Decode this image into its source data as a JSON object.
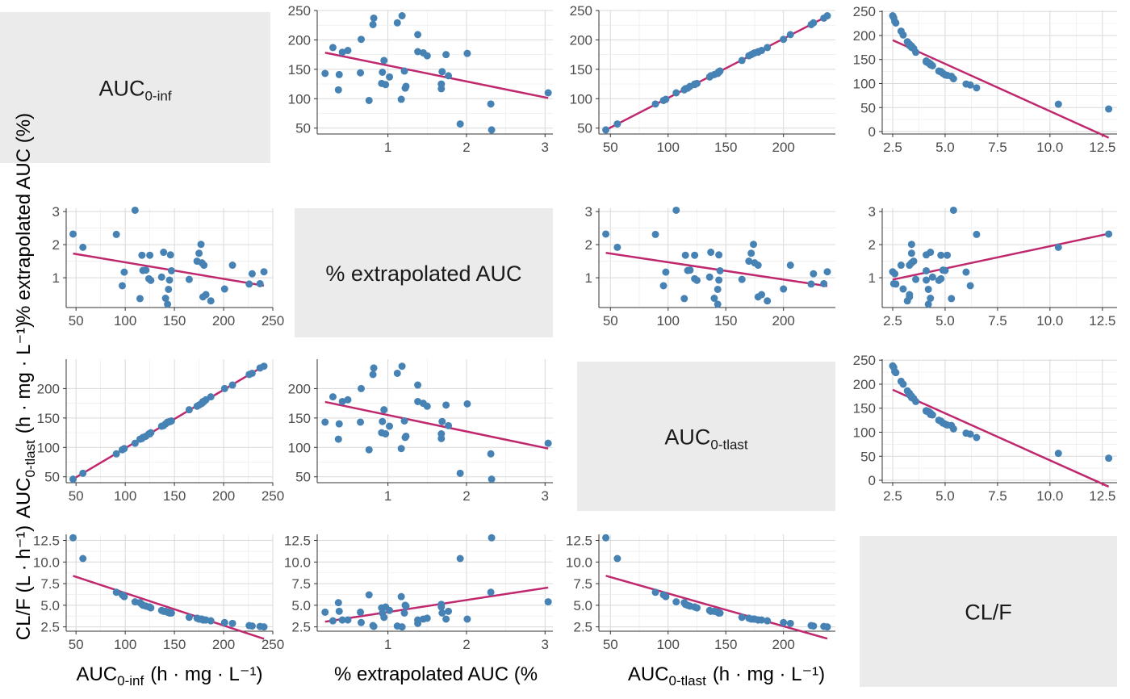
{
  "chart_data": {
    "type": "scatter",
    "title": "",
    "colors": {
      "point": "#4682b4",
      "line": "#c0286e",
      "panel_bg": "#ebebeb",
      "grid": "#d9d9d9"
    },
    "variables": [
      {
        "key": "auc_inf",
        "name": "AUC",
        "sub": "0-inf",
        "unit": "(h · mg · L⁻¹)",
        "range": [
          40,
          250
        ],
        "ticks": [
          50,
          100,
          150,
          200,
          250
        ],
        "tick_labels": [
          "50",
          "100",
          "150",
          "200",
          "250"
        ],
        "diag_label": "AUC0-inf"
      },
      {
        "key": "pct_extrap",
        "name": "% extrapolated AUC",
        "sub": "",
        "unit": "(%)",
        "range": [
          0.1,
          3.1
        ],
        "ticks": [
          1,
          2,
          3
        ],
        "tick_labels": [
          "1",
          "2",
          "3"
        ],
        "diag_label": "% extrapolated AUC"
      },
      {
        "key": "auc_tlast",
        "name": "AUC",
        "sub": "0-tlast",
        "unit": "(h · mg · L⁻¹)",
        "range": [
          40,
          245
        ],
        "ticks": [
          50,
          100,
          150,
          200
        ],
        "tick_labels": [
          "50",
          "100",
          "150",
          "200"
        ],
        "diag_label": "AUC0-tlast"
      },
      {
        "key": "cl_f",
        "name": "CL/F",
        "sub": "",
        "unit": "(L · h⁻¹)",
        "range": [
          2.0,
          13.2
        ],
        "ticks": [
          2.5,
          5.0,
          7.5,
          10.0,
          12.5
        ],
        "tick_labels": [
          "2.5",
          "5.0",
          "7.5",
          "10.0",
          "12.5"
        ],
        "diag_label": "CL/F"
      }
    ],
    "range_tlast_as_y": [
      40,
      250
    ],
    "ticks_tlast_as_y": [
      50,
      100,
      150,
      200
    ],
    "range_clf_as_y": [
      -5,
      252
    ],
    "ticks_clf_as_y": [
      0,
      50,
      100,
      150,
      200,
      250
    ],
    "observations": [
      {
        "auc_inf": 47,
        "pct_extrap": 2.32,
        "auc_tlast": 46,
        "cl_f": 12.8
      },
      {
        "auc_inf": 57,
        "pct_extrap": 1.92,
        "auc_tlast": 56,
        "cl_f": 10.4
      },
      {
        "auc_inf": 91,
        "pct_extrap": 2.31,
        "auc_tlast": 89,
        "cl_f": 6.5
      },
      {
        "auc_inf": 97,
        "pct_extrap": 0.76,
        "auc_tlast": 96,
        "cl_f": 6.2
      },
      {
        "auc_inf": 99,
        "pct_extrap": 1.17,
        "auc_tlast": 98,
        "cl_f": 6.0
      },
      {
        "auc_inf": 110,
        "pct_extrap": 3.04,
        "auc_tlast": 107,
        "cl_f": 5.4
      },
      {
        "auc_inf": 115,
        "pct_extrap": 0.37,
        "auc_tlast": 114,
        "cl_f": 5.3
      },
      {
        "auc_inf": 117,
        "pct_extrap": 1.68,
        "auc_tlast": 115,
        "cl_f": 5.1
      },
      {
        "auc_inf": 118,
        "pct_extrap": 1.22,
        "auc_tlast": 117,
        "cl_f": 5.0
      },
      {
        "auc_inf": 121,
        "pct_extrap": 1.23,
        "auc_tlast": 119,
        "cl_f": 4.9
      },
      {
        "auc_inf": 124,
        "pct_extrap": 0.97,
        "auc_tlast": 123,
        "cl_f": 4.8
      },
      {
        "auc_inf": 125,
        "pct_extrap": 1.68,
        "auc_tlast": 123,
        "cl_f": 4.8
      },
      {
        "auc_inf": 126,
        "pct_extrap": 0.92,
        "auc_tlast": 125,
        "cl_f": 4.7
      },
      {
        "auc_inf": 137,
        "pct_extrap": 1.02,
        "auc_tlast": 136,
        "cl_f": 4.4
      },
      {
        "auc_inf": 139,
        "pct_extrap": 1.77,
        "auc_tlast": 137,
        "cl_f": 4.3
      },
      {
        "auc_inf": 141,
        "pct_extrap": 0.38,
        "auc_tlast": 140,
        "cl_f": 4.3
      },
      {
        "auc_inf": 143,
        "pct_extrap": 0.2,
        "auc_tlast": 143,
        "cl_f": 4.2
      },
      {
        "auc_inf": 144,
        "pct_extrap": 0.65,
        "auc_tlast": 143,
        "cl_f": 4.2
      },
      {
        "auc_inf": 145,
        "pct_extrap": 0.93,
        "auc_tlast": 144,
        "cl_f": 4.1
      },
      {
        "auc_inf": 146,
        "pct_extrap": 1.69,
        "auc_tlast": 144,
        "cl_f": 4.1
      },
      {
        "auc_inf": 147,
        "pct_extrap": 1.21,
        "auc_tlast": 145,
        "cl_f": 4.1
      },
      {
        "auc_inf": 165,
        "pct_extrap": 0.95,
        "auc_tlast": 164,
        "cl_f": 3.6
      },
      {
        "auc_inf": 173,
        "pct_extrap": 1.5,
        "auc_tlast": 170,
        "cl_f": 3.5
      },
      {
        "auc_inf": 175,
        "pct_extrap": 1.74,
        "auc_tlast": 172,
        "cl_f": 3.4
      },
      {
        "auc_inf": 177,
        "pct_extrap": 2.01,
        "auc_tlast": 174,
        "cl_f": 3.4
      },
      {
        "auc_inf": 178,
        "pct_extrap": 1.45,
        "auc_tlast": 175,
        "cl_f": 3.4
      },
      {
        "auc_inf": 179,
        "pct_extrap": 0.42,
        "auc_tlast": 178,
        "cl_f": 3.3
      },
      {
        "auc_inf": 180,
        "pct_extrap": 1.38,
        "auc_tlast": 178,
        "cl_f": 3.3
      },
      {
        "auc_inf": 182,
        "pct_extrap": 0.49,
        "auc_tlast": 181,
        "cl_f": 3.3
      },
      {
        "auc_inf": 187,
        "pct_extrap": 0.3,
        "auc_tlast": 186,
        "cl_f": 3.2
      },
      {
        "auc_inf": 201,
        "pct_extrap": 0.66,
        "auc_tlast": 200,
        "cl_f": 3.0
      },
      {
        "auc_inf": 209,
        "pct_extrap": 1.38,
        "auc_tlast": 206,
        "cl_f": 2.9
      },
      {
        "auc_inf": 226,
        "pct_extrap": 0.81,
        "auc_tlast": 224,
        "cl_f": 2.65
      },
      {
        "auc_inf": 229,
        "pct_extrap": 1.12,
        "auc_tlast": 226,
        "cl_f": 2.6
      },
      {
        "auc_inf": 237,
        "pct_extrap": 0.82,
        "auc_tlast": 235,
        "cl_f": 2.55
      },
      {
        "auc_inf": 241,
        "pct_extrap": 1.18,
        "auc_tlast": 238,
        "cl_f": 2.5
      }
    ],
    "x_axis_titles": [
      {
        "main": "AUC",
        "sub": "0-inf",
        "unit": "(h · mg · L⁻¹)"
      },
      {
        "main": "% extrapolated AUC (%",
        "sub": "",
        "unit": ""
      },
      {
        "main": "AUC",
        "sub": "0-tlast",
        "unit": "(h · mg · L⁻¹)"
      }
    ],
    "y_axis_titles": [
      {
        "main": "% extrapolated AUC (%)",
        "sub": "",
        "unit": ""
      },
      {
        "main": "AUC",
        "sub": "0-tlast",
        "unit": "(h · mg · L⁻¹)"
      },
      {
        "main": "CL/F (L · h⁻¹)",
        "sub": "",
        "unit": ""
      }
    ]
  }
}
